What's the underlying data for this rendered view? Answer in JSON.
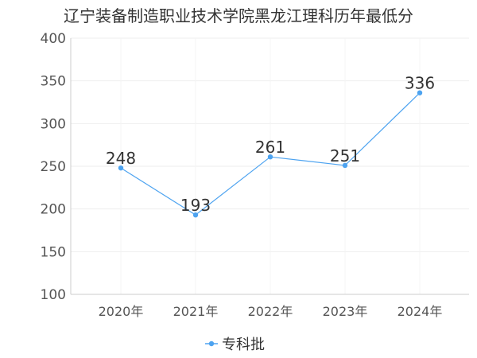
{
  "chart_data": {
    "type": "line",
    "title": "辽宁装备制造职业技术学院黑龙江理科历年最低分",
    "categories": [
      "2020年",
      "2021年",
      "2022年",
      "2023年",
      "2024年"
    ],
    "series": [
      {
        "name": "专科批",
        "values": [
          248,
          193,
          261,
          251,
          336
        ],
        "color": "#4da3f0"
      }
    ],
    "ylim": [
      100,
      400
    ],
    "yticks": [
      100,
      150,
      200,
      250,
      300,
      350,
      400
    ],
    "grid": true,
    "legend": "bottom-center"
  }
}
